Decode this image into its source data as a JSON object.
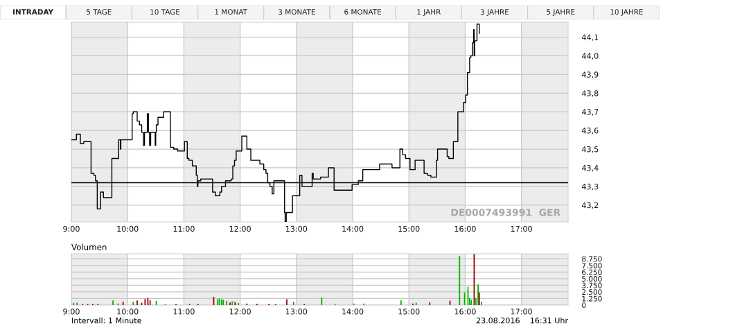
{
  "chart_data": [
    {
      "type": "other",
      "annotations": [
        "INTRADAY",
        "5 TAGE",
        "10 TAGE",
        "1 MONAT",
        "3 MONATE",
        "6 MONATE",
        "1 JAHR",
        "3 JAHRE",
        "5 JAHRE",
        "10 JAHRE"
      ]
    },
    {
      "type": "step",
      "series": [
        {
          "color": "#000000",
          "x": [
            9.0,
            9.09,
            9.16,
            9.22,
            9.35,
            9.4,
            9.43,
            9.46,
            9.52,
            9.57,
            9.72,
            9.84,
            9.87,
            9.88,
            10.08,
            10.1,
            10.17,
            10.21,
            10.25,
            10.28,
            10.3,
            10.35,
            10.37,
            10.39,
            10.41,
            10.49,
            10.5,
            10.51,
            10.54,
            10.64,
            10.76,
            10.82,
            10.89,
            11.01,
            11.06,
            11.09,
            11.15,
            11.22,
            11.24,
            11.25,
            11.3,
            11.51,
            11.56,
            11.64,
            11.67,
            11.74,
            11.84,
            11.87,
            11.9,
            11.93,
            12.03,
            12.12,
            12.19,
            12.35,
            12.42,
            12.46,
            12.49,
            12.53,
            12.57,
            12.6,
            12.79,
            12.8,
            12.82,
            12.93,
            13.06,
            13.1,
            13.28,
            13.3,
            13.43,
            13.57,
            13.67,
            13.99,
            14.1,
            14.18,
            14.48,
            14.7,
            14.84,
            14.89,
            14.94,
            15.02,
            15.11,
            15.27,
            15.33,
            15.39,
            15.49,
            15.51,
            15.68,
            15.71,
            15.79,
            15.87,
            15.97,
            16.01,
            16.04,
            16.08,
            16.1,
            16.13,
            16.15,
            16.16,
            16.17,
            16.21,
            16.25
          ],
          "values": [
            43.55,
            43.58,
            43.53,
            43.54,
            43.37,
            43.36,
            43.33,
            43.18,
            43.27,
            43.24,
            43.45,
            43.55,
            43.5,
            43.55,
            43.69,
            43.7,
            43.65,
            43.63,
            43.59,
            43.52,
            43.59,
            43.69,
            43.59,
            43.52,
            43.59,
            43.52,
            43.59,
            43.63,
            43.67,
            43.7,
            43.51,
            43.5,
            43.49,
            43.54,
            43.45,
            43.44,
            43.41,
            43.36,
            43.3,
            43.33,
            43.34,
            43.27,
            43.25,
            43.27,
            43.3,
            43.33,
            43.34,
            43.41,
            43.44,
            43.49,
            43.57,
            43.5,
            43.44,
            43.42,
            43.39,
            43.37,
            43.32,
            43.3,
            43.26,
            43.33,
            43.16,
            43.11,
            43.16,
            43.25,
            43.36,
            43.3,
            43.37,
            43.34,
            43.35,
            43.4,
            43.28,
            43.31,
            43.33,
            43.39,
            43.42,
            43.4,
            43.5,
            43.47,
            43.45,
            43.39,
            43.44,
            43.37,
            43.36,
            43.35,
            43.44,
            43.5,
            43.46,
            43.45,
            43.54,
            43.7,
            43.75,
            43.79,
            43.91,
            43.99,
            44.0,
            44.07,
            44.14,
            44.0,
            44.08,
            44.17,
            44.12
          ]
        }
      ],
      "xlim": [
        9,
        17.83
      ],
      "xticks": [
        {
          "value": 9,
          "label": "9:00"
        },
        {
          "value": 10,
          "label": "10:00"
        },
        {
          "value": 11,
          "label": "11:00"
        },
        {
          "value": 12,
          "label": "12:00"
        },
        {
          "value": 13,
          "label": "13:00"
        },
        {
          "value": 14,
          "label": "14:00"
        },
        {
          "value": 15,
          "label": "15:00"
        },
        {
          "value": 16,
          "label": "16:00"
        },
        {
          "value": 17,
          "label": "17:00"
        }
      ],
      "ylim": [
        43.11,
        44.18
      ],
      "yticks": [
        {
          "value": 43.2,
          "label": "43,2"
        },
        {
          "value": 43.3,
          "label": "43,3"
        },
        {
          "value": 43.4,
          "label": "43,4"
        },
        {
          "value": 43.5,
          "label": "43,5"
        },
        {
          "value": 43.6,
          "label": "43,6"
        },
        {
          "value": 43.7,
          "label": "43,7"
        },
        {
          "value": 43.8,
          "label": "43,8"
        },
        {
          "value": 43.9,
          "label": "43,9"
        },
        {
          "value": 44.0,
          "label": "44,0"
        },
        {
          "value": 44.1,
          "label": "44,1"
        }
      ],
      "ref_lines": [
        {
          "axis": "y",
          "value": 43.32,
          "color": "#000000"
        }
      ],
      "bands": [
        {
          "axis": "x",
          "from": 9,
          "to": 10,
          "color": "#ececec"
        },
        {
          "axis": "x",
          "from": 11,
          "to": 12,
          "color": "#ececec"
        },
        {
          "axis": "x",
          "from": 13,
          "to": 14,
          "color": "#ececec"
        },
        {
          "axis": "x",
          "from": 15,
          "to": 16,
          "color": "#ececec"
        },
        {
          "axis": "x",
          "from": 17,
          "to": 17.83,
          "color": "#ececec"
        }
      ],
      "grid": true,
      "annotations": [
        "DE0007493991  GER"
      ]
    },
    {
      "type": "bar",
      "title": "Volumen",
      "series": [
        {
          "color": "#00b000",
          "x": [
            9.04,
            9.1,
            9.74,
            9.83,
            10.1,
            10.51,
            10.67,
            11.6,
            11.63,
            11.67,
            11.7,
            11.76,
            11.86,
            11.97,
            12.95,
            13.45,
            13.69,
            14.02,
            14.2,
            14.86,
            15.13,
            15.9,
            15.99,
            16.05,
            16.08,
            16.11,
            16.19,
            16.23,
            16.29
          ],
          "values": [
            450,
            450,
            900,
            300,
            650,
            800,
            200,
            1100,
            1250,
            1100,
            1000,
            800,
            700,
            400,
            650,
            1450,
            200,
            300,
            300,
            900,
            450,
            9300,
            2400,
            3450,
            1300,
            1000,
            1300,
            3900,
            650
          ]
        },
        {
          "color": "#990000",
          "x": [
            9.2,
            9.29,
            9.38,
            9.47,
            9.92,
            10.17,
            10.25,
            10.31,
            10.36,
            10.4,
            10.86,
            11.1,
            11.25,
            11.53,
            11.82,
            11.91,
            12.12,
            12.3,
            12.51,
            12.63,
            12.83,
            13.14,
            15.07,
            15.37,
            15.73,
            16.16,
            16.25
          ],
          "values": [
            200,
            200,
            250,
            200,
            650,
            900,
            450,
            1150,
            1350,
            900,
            200,
            200,
            250,
            1550,
            500,
            600,
            300,
            250,
            250,
            200,
            1100,
            200,
            300,
            500,
            850,
            9700,
            2400
          ]
        }
      ],
      "xlim": [
        9,
        17.83
      ],
      "xticks": [
        {
          "value": 9,
          "label": "9:00"
        },
        {
          "value": 10,
          "label": "10:00"
        },
        {
          "value": 11,
          "label": "11:00"
        },
        {
          "value": 12,
          "label": "12:00"
        },
        {
          "value": 13,
          "label": "13:00"
        },
        {
          "value": 14,
          "label": "14:00"
        },
        {
          "value": 15,
          "label": "15:00"
        },
        {
          "value": 16,
          "label": "16:00"
        },
        {
          "value": 17,
          "label": "17:00"
        }
      ],
      "ylim": [
        0,
        9700
      ],
      "yticks": [
        0,
        {
          "value": 1250,
          "label": "1.250"
        },
        {
          "value": 2500,
          "label": "2.500"
        },
        {
          "value": 3750,
          "label": "3.750"
        },
        {
          "value": 5000,
          "label": "5.000"
        },
        {
          "value": 6250,
          "label": "6.250"
        },
        {
          "value": 7500,
          "label": "7.500"
        },
        {
          "value": 8750,
          "label": "8.750"
        }
      ],
      "bands": [
        {
          "axis": "x",
          "from": 9,
          "to": 10,
          "color": "#ececec"
        },
        {
          "axis": "x",
          "from": 11,
          "to": 12,
          "color": "#ececec"
        },
        {
          "axis": "x",
          "from": 13,
          "to": 14,
          "color": "#ececec"
        },
        {
          "axis": "x",
          "from": 15,
          "to": 16,
          "color": "#ececec"
        },
        {
          "axis": "x",
          "from": 17,
          "to": 17.83,
          "color": "#ececec"
        }
      ],
      "grid": true,
      "annotations": [
        "Intervall: 1 Minute",
        "23.08.2016    16:31 Uhr"
      ]
    }
  ]
}
